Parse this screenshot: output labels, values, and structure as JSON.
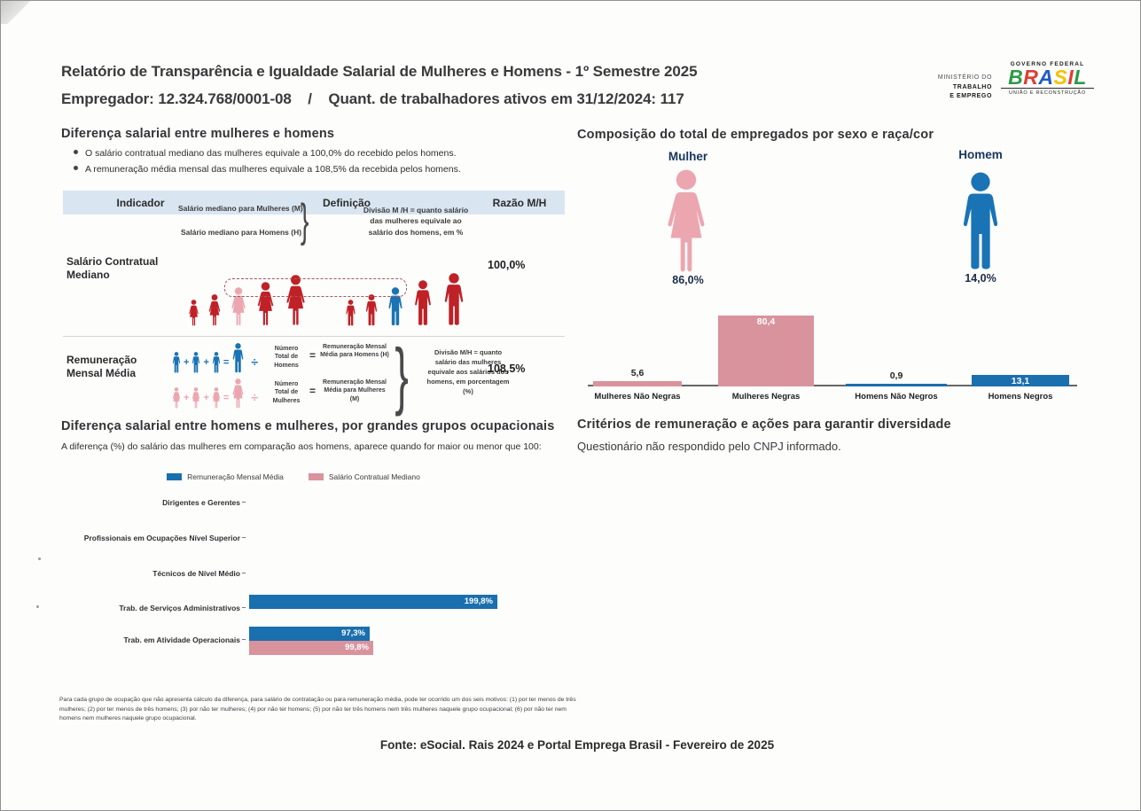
{
  "page": {
    "title": "Relatório de Transparência e Igualdade Salarial de Mulheres e Homens - 1º Semestre 2025",
    "subtitle": "Empregador: 12.324.768/0001-08    /    Quant. de trabalhadores ativos em 31/12/2024: 117",
    "footnote": "Para cada grupo de ocupação que não apresenta cálculo da diferença, para salário de contratação ou para remuneração média, pode ter ocorrido um dos seis motivos: (1) por ter menos de três mulheres; (2) por ter menos de três homens; (3) por não ter mulheres; (4) por não ter homens; (5) por não ter três homens nem três mulheres naquele grupo ocupacional; (6) por não ter nem homens nem mulheres naquele grupo ocupacional.",
    "footer_source": "Fonte: eSocial. Rais 2024 e Portal Emprega Brasil - Fevereiro de 2025"
  },
  "logos": {
    "ministry_line1": "MINISTÉRIO DO",
    "ministry_line2": "TRABALHO",
    "ministry_line3": "E EMPREGO",
    "gov_top": "GOVERNO FEDERAL",
    "gov_name": "BRASIL",
    "gov_bottom": "UNIÃO E RECONSTRUÇÃO"
  },
  "colors": {
    "dark_red": "#bf2127",
    "pink_figure": "#eca6b0",
    "pink_bar": "#d9939d",
    "blue": "#1a73b5",
    "navy": "#17365d",
    "table_header_bg": "#d9e5f1",
    "brasil_letters": [
      "#2d9a47",
      "#e03c31",
      "#1e5bc6",
      "#f2c200",
      "#e03c31",
      "#2d9a47"
    ]
  },
  "salary_gap": {
    "title": "Diferença salarial entre mulheres e homens",
    "bullets": [
      "O salário contratual mediano das mulheres equivale a 100,0% do recebido pelos homens.",
      "A remuneração média mensal das mulheres equivale a 108,5% da recebida pelos homens."
    ],
    "table": {
      "headers": [
        "Indicador",
        "Definição",
        "Razão M/H"
      ],
      "rows": [
        {
          "indicator": "Salário Contratual Mediano",
          "def_lines": [
            "Salário mediano para Mulheres (M)",
            "Salário mediano para Homens (H)"
          ],
          "note": "Divisão M /H = quanto salário das mulheres equivale ao salário dos homens, em %",
          "ratio": "100,0%"
        },
        {
          "indicator": "Remuneração Mensal Média",
          "men_divisor": "Número Total de Homens",
          "men_result": "Remuneração Mensal Média para Homens (H)",
          "women_divisor": "Número Total de Mulheres",
          "women_result": "Remuneração Mensal Média para Mulheres (M)",
          "note": "Divisão M/H = quanto salário das mulheres equivale aos salários dos homens, em porcentagem (%)",
          "ratio": "108,5%"
        }
      ]
    },
    "operators": {
      "plus": "+",
      "equals": "=",
      "divide": "÷"
    },
    "median_figures": [
      {
        "sex": "f",
        "h": 30,
        "color": "#bf2127"
      },
      {
        "sex": "f",
        "h": 36,
        "color": "#bf2127"
      },
      {
        "sex": "f",
        "h": 44,
        "color": "#eca6b0"
      },
      {
        "sex": "f",
        "h": 50,
        "color": "#bf2127"
      },
      {
        "sex": "f",
        "h": 58,
        "color": "#bf2127"
      },
      {
        "sex": "m",
        "h": 30,
        "color": "#bf2127",
        "gap": 40
      },
      {
        "sex": "m",
        "h": 36,
        "color": "#bf2127"
      },
      {
        "sex": "m",
        "h": 44,
        "color": "#1a73b5"
      },
      {
        "sex": "m",
        "h": 52,
        "color": "#bf2127"
      },
      {
        "sex": "m",
        "h": 60,
        "color": "#bf2127"
      }
    ]
  },
  "composition": {
    "title": "Composição do total de empregados por sexo e raça/cor",
    "female_label": "Mulher",
    "female_pct": "86,0%",
    "male_label": "Homem",
    "male_pct": "14,0%"
  },
  "occupation": {
    "title": "Diferença salarial entre homens e mulheres, por grandes grupos ocupacionais",
    "subtitle": "A diferença (%) do salário das mulheres em comparação aos homens, aparece quando for maior ou menor que 100:"
  },
  "diversity": {
    "title": "Critérios de remuneração e ações para garantir diversidade",
    "text": "Questionário não respondido pelo CNPJ informado."
  },
  "chart_data": [
    {
      "type": "bar",
      "title": "Composição do total de empregados por sexo e raça/cor",
      "categories": [
        "Mulheres Não Negras",
        "Mulheres Negras",
        "Homens Não Negros",
        "Homens Negros"
      ],
      "values": [
        5.6,
        80.4,
        0.9,
        13.1
      ],
      "labels": [
        "5,6",
        "80,4",
        "0,9",
        "13,1"
      ],
      "colors": [
        "#d9939d",
        "#d9939d",
        "#1a6fae",
        "#1a6fae"
      ],
      "xlabel": "",
      "ylabel": "",
      "ylim": [
        0,
        100
      ],
      "grid": false,
      "legend": "none"
    },
    {
      "type": "bar-horizontal",
      "title": "Diferença salarial entre homens e mulheres, por grandes grupos ocupacionais",
      "categories": [
        "Dirigentes e Gerentes",
        "Profissionais em Ocupações Nível Superior",
        "Técnicos de Nível Médio",
        "Trab. de Serviços Administrativos",
        "Trab. em Atividade Operacionais"
      ],
      "series": [
        {
          "name": "Remuneração Mensal Média",
          "color": "#1a6fae",
          "values": [
            null,
            null,
            null,
            199.8,
            97.3
          ],
          "labels": [
            null,
            null,
            null,
            "199,8%",
            "97,3%"
          ]
        },
        {
          "name": "Salário Contratual Mediano",
          "color": "#d9939d",
          "values": [
            null,
            null,
            null,
            null,
            99.8
          ],
          "labels": [
            null,
            null,
            null,
            null,
            "99,8%"
          ]
        }
      ],
      "xlim": [
        0,
        200
      ],
      "grid": false,
      "legend_position": "top"
    }
  ]
}
